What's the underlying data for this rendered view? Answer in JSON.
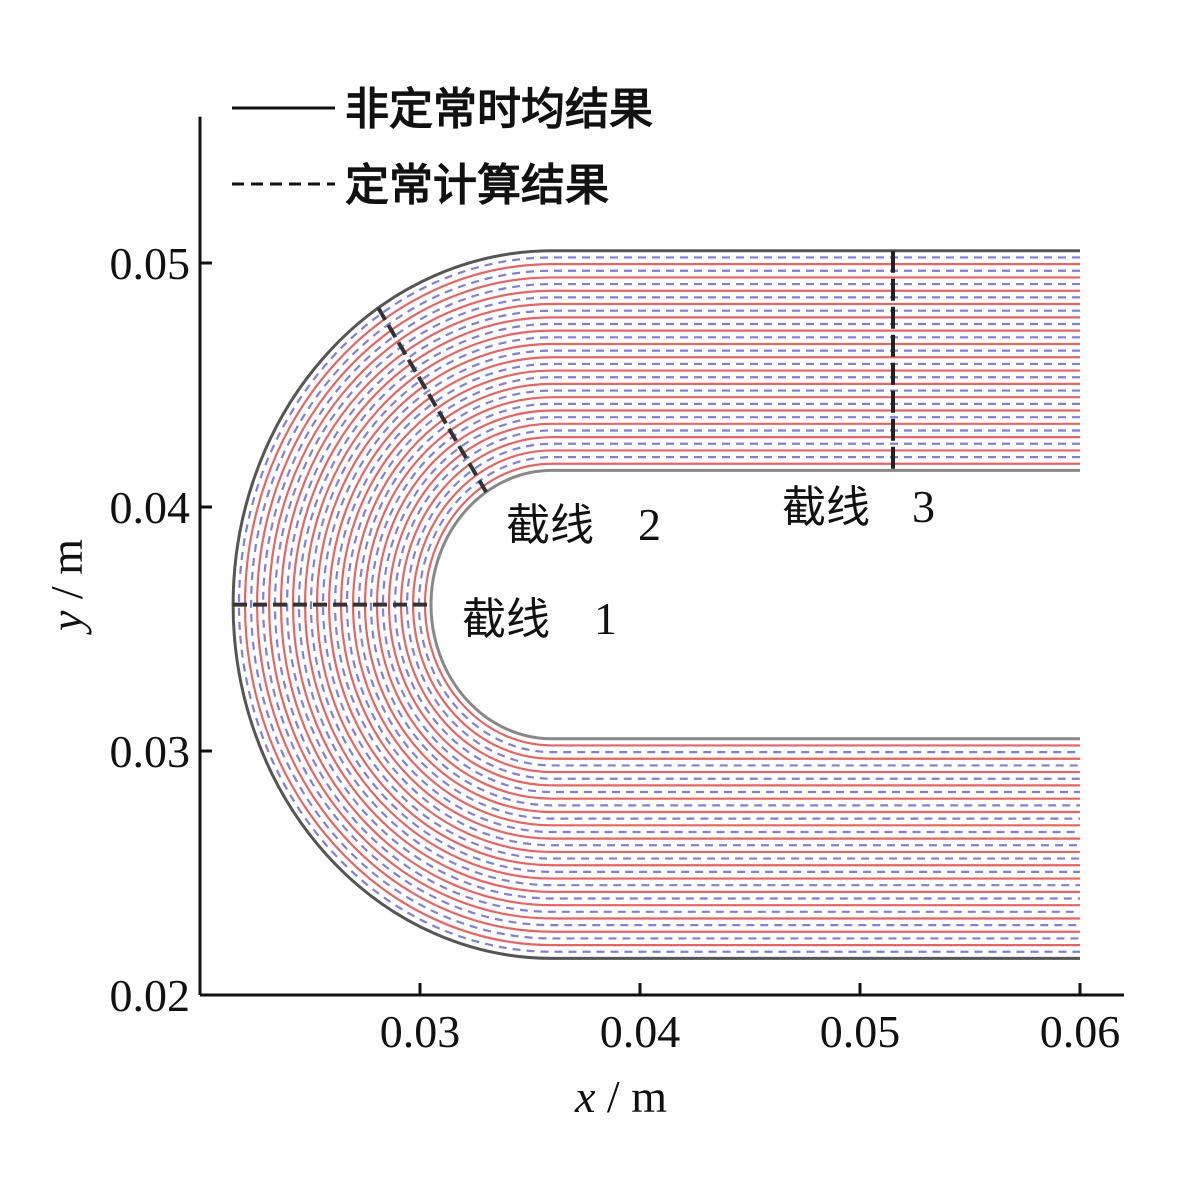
{
  "chart_data": {
    "type": "line",
    "title": "",
    "xlabel": {
      "var": "x",
      "unit": "m"
    },
    "ylabel": {
      "var": "y",
      "unit": "m"
    },
    "xlim": [
      0.02,
      0.062
    ],
    "ylim": [
      0.02,
      0.056
    ],
    "x_ticks": [
      "0.03",
      "0.04",
      "0.05",
      "0.06"
    ],
    "y_ticks": [
      "0.02",
      "0.03",
      "0.04",
      "0.05"
    ],
    "grid": false,
    "legend_position": "top-left",
    "series": [
      {
        "name": "非定常时均结果",
        "style": "solid",
        "color": "#e04a4a",
        "count": 16
      },
      {
        "name": "定常计算结果",
        "style": "dashed",
        "color": "#6a6ad0",
        "count": 16
      }
    ],
    "geometry": {
      "bend_center": [
        0.036,
        0.036
      ],
      "inner_radius": 0.0055,
      "outer_radius": 0.0145,
      "upper_leg_x_end": 0.06,
      "lower_leg_x_end": 0.06
    },
    "annotations": [
      {
        "label": "截线",
        "number": "1"
      },
      {
        "label": "截线",
        "number": "2"
      },
      {
        "label": "截线",
        "number": "3"
      }
    ]
  }
}
